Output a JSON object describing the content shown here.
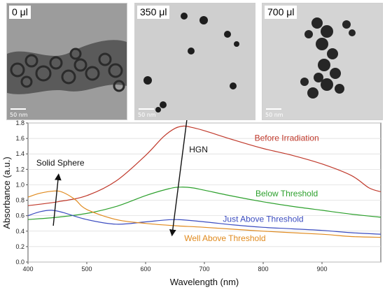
{
  "panels": [
    {
      "label": "0 μl",
      "scale": "50 nm"
    },
    {
      "label": "350 μl",
      "scale": "50 nm"
    },
    {
      "label": "700 μl",
      "scale": "50 nm"
    }
  ],
  "colors": {
    "before": "#c0392b",
    "below": "#2ca02c",
    "just_above": "#3b4cc0",
    "well_above": "#e08a1e",
    "annotation": "#111111"
  },
  "chart_data": {
    "type": "line",
    "xlabel": "Wavelength (nm)",
    "ylabel": "Absorbance (a.u.)",
    "xlim": [
      400,
      1000
    ],
    "ylim": [
      0,
      1.8
    ],
    "xticks": [
      400,
      500,
      600,
      700,
      800,
      900
    ],
    "yticks": [
      0,
      0.2,
      0.4,
      0.6,
      0.8,
      1.0,
      1.2,
      1.4,
      1.6,
      1.8
    ],
    "series": [
      {
        "name": "Before Irradiation",
        "color_key": "before",
        "x": [
          400,
          450,
          500,
          550,
          600,
          630,
          650,
          665,
          680,
          700,
          750,
          800,
          850,
          900,
          950,
          980,
          1000
        ],
        "y": [
          0.73,
          0.78,
          0.86,
          1.05,
          1.38,
          1.62,
          1.73,
          1.76,
          1.74,
          1.7,
          1.58,
          1.47,
          1.38,
          1.27,
          1.12,
          0.96,
          0.91
        ]
      },
      {
        "name": "Below Threshold",
        "color_key": "below",
        "x": [
          400,
          450,
          500,
          550,
          600,
          640,
          660,
          680,
          700,
          750,
          800,
          850,
          900,
          950,
          1000
        ],
        "y": [
          0.55,
          0.58,
          0.63,
          0.72,
          0.86,
          0.95,
          0.97,
          0.96,
          0.93,
          0.85,
          0.78,
          0.72,
          0.67,
          0.62,
          0.58
        ]
      },
      {
        "name": "Just Above Threshold",
        "color_key": "just_above",
        "x": [
          400,
          420,
          440,
          460,
          500,
          550,
          600,
          650,
          700,
          750,
          800,
          850,
          900,
          950,
          1000
        ],
        "y": [
          0.6,
          0.65,
          0.67,
          0.64,
          0.55,
          0.49,
          0.52,
          0.55,
          0.52,
          0.48,
          0.45,
          0.43,
          0.41,
          0.38,
          0.36
        ]
      },
      {
        "name": "Well Above Threshold",
        "color_key": "well_above",
        "x": [
          400,
          420,
          445,
          460,
          480,
          500,
          550,
          600,
          650,
          700,
          800,
          900,
          950,
          1000
        ],
        "y": [
          0.84,
          0.89,
          0.92,
          0.9,
          0.81,
          0.68,
          0.55,
          0.5,
          0.47,
          0.45,
          0.4,
          0.36,
          0.33,
          0.32
        ]
      }
    ],
    "annotations": [
      {
        "text": "Before Irradiation",
        "x": 840,
        "y": 1.57,
        "color_key": "before"
      },
      {
        "text": "Below Threshold",
        "x": 840,
        "y": 0.85,
        "color_key": "below"
      },
      {
        "text": "Just Above Threshold",
        "x": 800,
        "y": 0.52,
        "color_key": "just_above"
      },
      {
        "text": "Well Above Threshold",
        "x": 735,
        "y": 0.27,
        "color_key": "well_above"
      },
      {
        "text": "Solid Sphere",
        "x": 455,
        "y": 1.25,
        "color_key": "annotation"
      },
      {
        "text": "HGN",
        "x": 690,
        "y": 1.42,
        "color_key": "annotation"
      }
    ],
    "arrows": [
      {
        "name": "solid-sphere-arrow",
        "from": [
          443,
          0.47
        ],
        "to": [
          452,
          1.13
        ]
      },
      {
        "name": "hgn-arrow",
        "from": [
          672,
          1.95
        ],
        "to": [
          645,
          0.35
        ]
      }
    ]
  }
}
